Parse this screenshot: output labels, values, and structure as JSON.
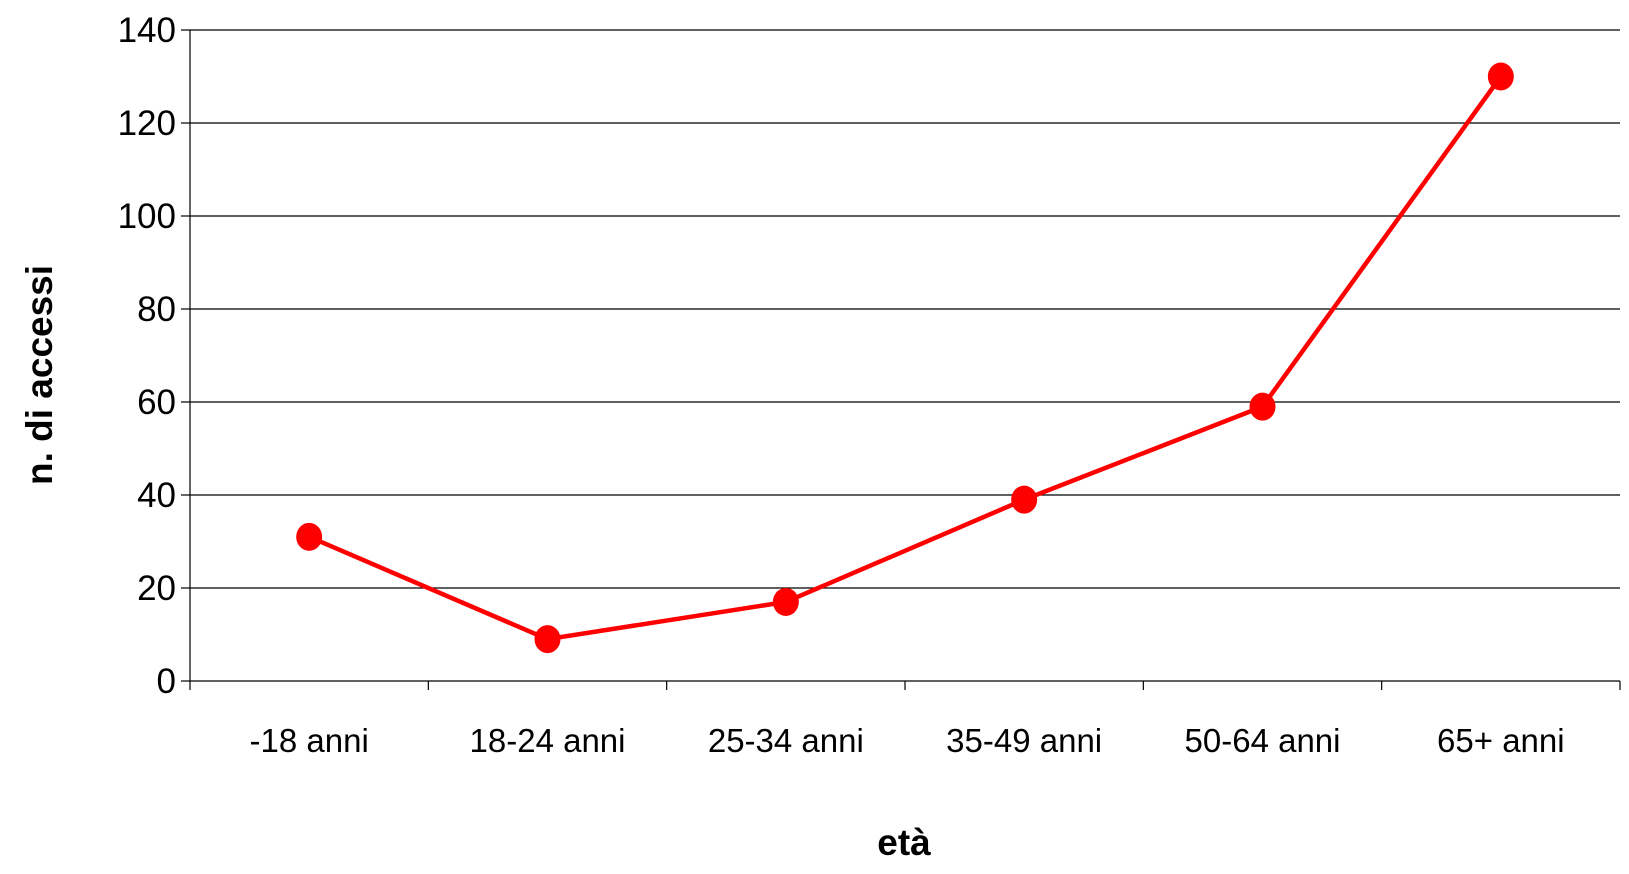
{
  "chart_data": {
    "type": "line",
    "categories": [
      "-18 anni",
      "18-24 anni",
      "25-34 anni",
      "35-49 anni",
      "50-64 anni",
      "65+ anni"
    ],
    "series": [
      {
        "values": [
          31,
          9,
          17,
          39,
          59,
          130
        ]
      }
    ],
    "xlabel": "età",
    "ylabel": "n. di accessi",
    "ylim": [
      0,
      140
    ],
    "yticks": [
      0,
      20,
      40,
      60,
      80,
      100,
      120,
      140
    ],
    "grid": true,
    "legend": "none",
    "line_color": "#ff0000",
    "grid_color": "#000000"
  }
}
